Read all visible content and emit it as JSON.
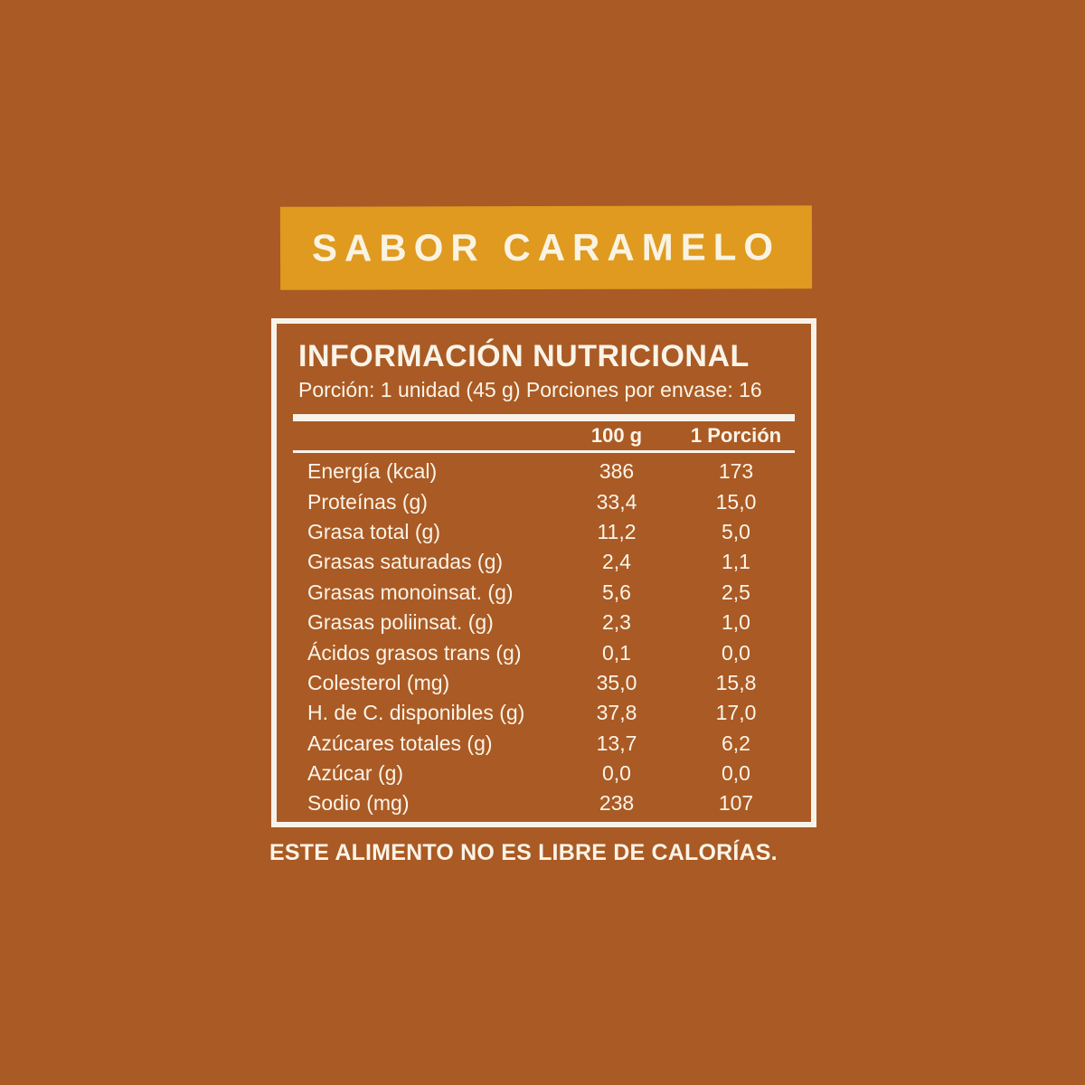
{
  "page": {
    "background_color": "#AA5A24",
    "banner_color": "#DF9A1F",
    "text_color": "#FAF4E8"
  },
  "banner": {
    "label": "SABOR CARAMELO"
  },
  "panel": {
    "title": "INFORMACIÓN NUTRICIONAL",
    "portion_line": "Porción: 1 unidad (45 g) Porciones por envase: 16",
    "columns": [
      "100 g",
      "1 Porción"
    ],
    "rows": [
      {
        "label": "Energía (kcal)",
        "per_100g": "386",
        "per_portion": "173"
      },
      {
        "label": "Proteínas (g)",
        "per_100g": "33,4",
        "per_portion": "15,0"
      },
      {
        "label": "Grasa total (g)",
        "per_100g": "11,2",
        "per_portion": "5,0"
      },
      {
        "label": "Grasas saturadas (g)",
        "per_100g": "2,4",
        "per_portion": "1,1"
      },
      {
        "label": "Grasas monoinsat. (g)",
        "per_100g": "5,6",
        "per_portion": "2,5"
      },
      {
        "label": "Grasas poliinsat. (g)",
        "per_100g": "2,3",
        "per_portion": "1,0"
      },
      {
        "label": "Ácidos grasos trans (g)",
        "per_100g": "0,1",
        "per_portion": "0,0"
      },
      {
        "label": "Colesterol (mg)",
        "per_100g": "35,0",
        "per_portion": "15,8"
      },
      {
        "label": "H. de C. disponibles (g)",
        "per_100g": "37,8",
        "per_portion": "17,0"
      },
      {
        "label": "Azúcares totales (g)",
        "per_100g": "13,7",
        "per_portion": "6,2"
      },
      {
        "label": "Azúcar (g)",
        "per_100g": "0,0",
        "per_portion": "0,0"
      },
      {
        "label": "Sodio (mg)",
        "per_100g": "238",
        "per_portion": "107"
      }
    ]
  },
  "footnote": "ESTE ALIMENTO NO ES LIBRE DE CALORÍAS."
}
